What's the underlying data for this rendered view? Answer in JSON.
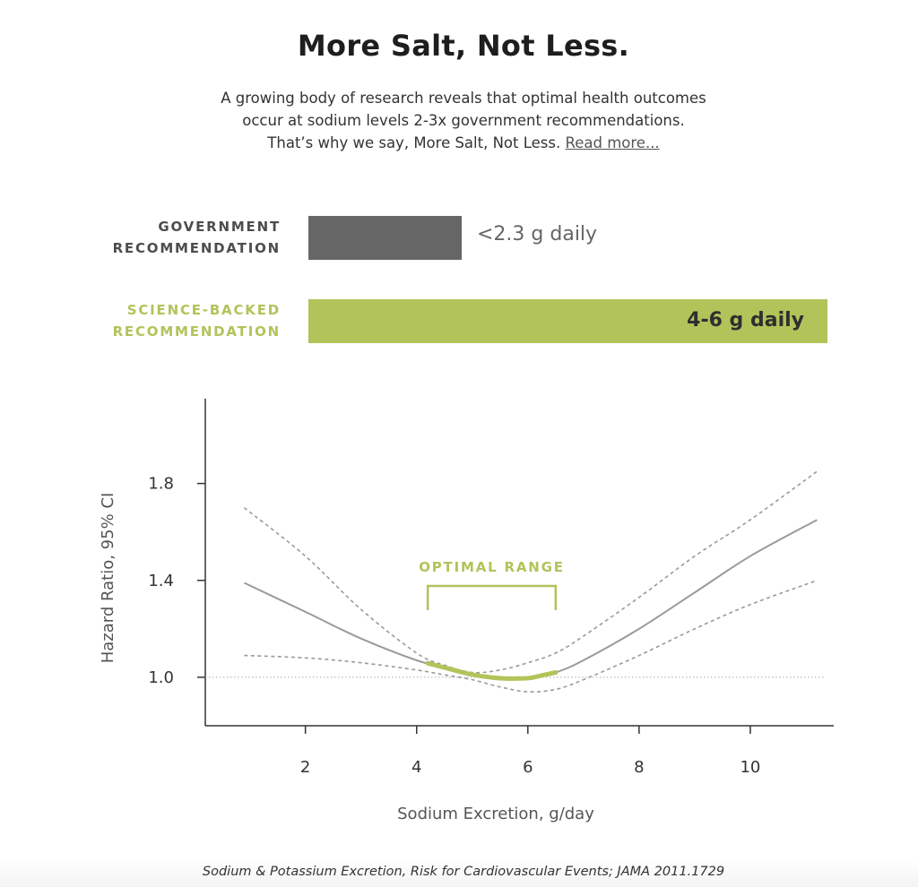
{
  "header": {
    "title": "More Salt, Not Less.",
    "intro_line1": "A growing body of research reveals that optimal health outcomes",
    "intro_line2": "occur at sodium levels 2-3x government recommendations.",
    "intro_line3": "That’s why we say, More Salt, Not Less.",
    "read_more_label": "Read more..."
  },
  "recommendations": {
    "government": {
      "label_line1": "GOVERNMENT",
      "label_line2": "RECOMMENDATION",
      "value": "<2.3 g daily",
      "color": "#666666"
    },
    "science": {
      "label_line1": "SCIENCE-BACKED",
      "label_line2": "RECOMMENDATION",
      "value": "4-6 g daily",
      "color": "#b2c35a"
    }
  },
  "chart_data": {
    "type": "line",
    "xlabel": "Sodium Excretion, g/day",
    "ylabel": "Hazard Ratio, 95% CI",
    "xlim": [
      0.2,
      11.5
    ],
    "ylim": [
      0.8,
      2.15
    ],
    "x_ticks": [
      2,
      4,
      6,
      8,
      10
    ],
    "y_ticks": [
      1.0,
      1.4,
      1.8
    ],
    "x_tick_labels": [
      "2",
      "4",
      "6",
      "8",
      "10"
    ],
    "y_tick_labels": [
      "1.0",
      "1.4",
      "1.8"
    ],
    "reference_line": 1.0,
    "annotation": {
      "label": "OPTIMAL RANGE",
      "x_start": 4.2,
      "x_end": 6.5,
      "color": "#b2c35a"
    },
    "series": [
      {
        "role": "hazard",
        "style": "solid",
        "color": "#9a9a9a",
        "x": [
          0.9,
          2.0,
          3.0,
          4.0,
          4.5,
          5.0,
          5.5,
          6.0,
          6.5,
          7.0,
          8.0,
          9.0,
          10.0,
          11.2
        ],
        "y": [
          1.39,
          1.27,
          1.16,
          1.07,
          1.04,
          1.01,
          0.995,
          0.995,
          1.02,
          1.07,
          1.2,
          1.35,
          1.5,
          1.65
        ]
      },
      {
        "role": "upper-ci",
        "style": "dashed",
        "color": "#9a9a9a",
        "x": [
          0.9,
          2.0,
          3.0,
          4.0,
          4.5,
          5.0,
          5.5,
          6.0,
          6.5,
          7.0,
          8.0,
          9.0,
          10.0,
          11.2
        ],
        "y": [
          1.7,
          1.5,
          1.28,
          1.1,
          1.05,
          1.02,
          1.03,
          1.06,
          1.1,
          1.17,
          1.33,
          1.5,
          1.65,
          1.85
        ]
      },
      {
        "role": "lower-ci",
        "style": "dashed",
        "color": "#9a9a9a",
        "x": [
          0.9,
          2.0,
          3.0,
          4.0,
          4.5,
          5.0,
          5.5,
          6.0,
          6.5,
          7.0,
          8.0,
          9.0,
          10.0,
          11.2
        ],
        "y": [
          1.09,
          1.08,
          1.06,
          1.03,
          1.01,
          0.99,
          0.96,
          0.94,
          0.95,
          0.99,
          1.09,
          1.2,
          1.3,
          1.4
        ]
      }
    ]
  },
  "footer": {
    "caption": "Sodium & Potassium Excretion, Risk for Cardiovascular Events; JAMA 2011.1729"
  }
}
